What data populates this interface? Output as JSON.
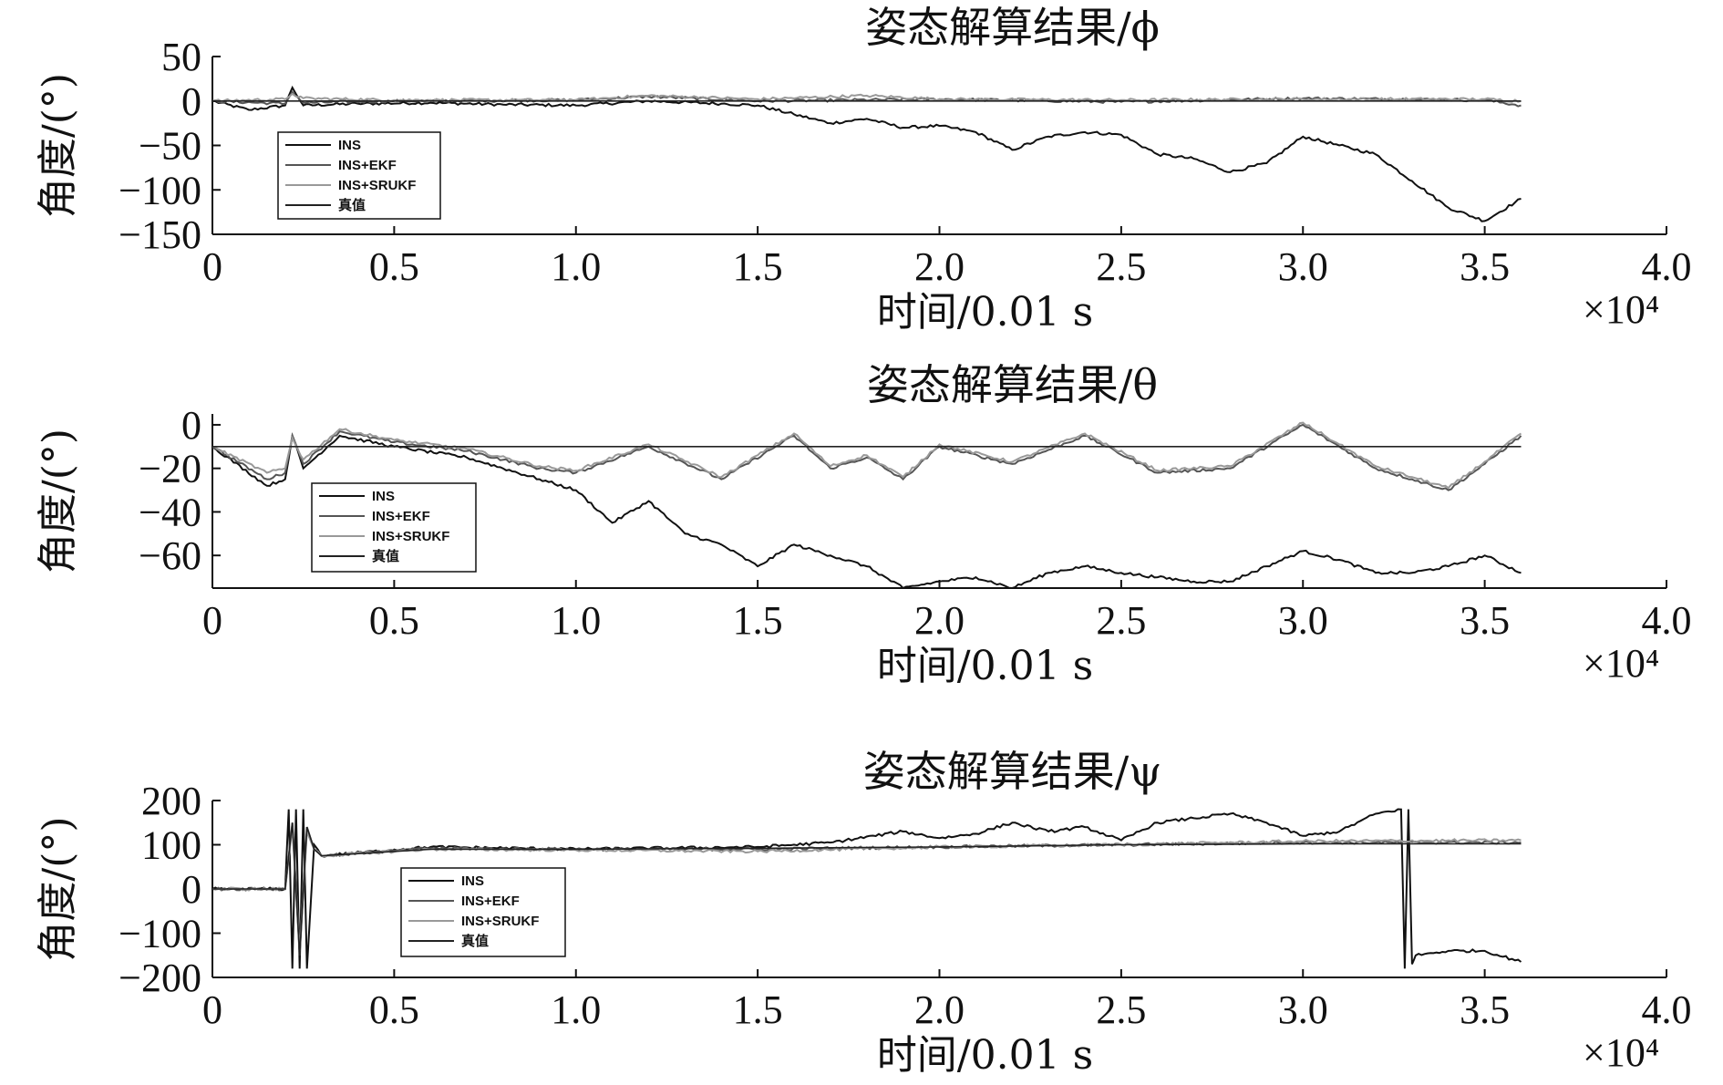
{
  "chart_data": [
    {
      "type": "line",
      "title": "姿态解算结果/ϕ",
      "xlabel": "时间/0.01 s",
      "ylabel": "角度/(°)",
      "x_exponent": "×10⁴",
      "xlim": [
        0,
        4.0
      ],
      "ylim": [
        -150,
        50
      ],
      "x_ticks": [
        "0",
        "0.5",
        "1.0",
        "1.5",
        "2.0",
        "2.5",
        "3.0",
        "3.5",
        "4.0"
      ],
      "y_ticks": [
        "50",
        "0",
        "−50",
        "−100",
        "−150"
      ],
      "legend": [
        "INS",
        "INS+EKF",
        "INS+SRUKF",
        "真值"
      ],
      "legend_position": "lower-left",
      "series": [
        {
          "name": "INS",
          "color": "#111111",
          "x": [
            0,
            0.1,
            0.2,
            0.22,
            0.25,
            0.4,
            0.6,
            0.8,
            1.0,
            1.2,
            1.4,
            1.5,
            1.6,
            1.7,
            1.8,
            1.9,
            2.0,
            2.1,
            2.2,
            2.3,
            2.4,
            2.5,
            2.6,
            2.7,
            2.8,
            2.9,
            3.0,
            3.1,
            3.2,
            3.3,
            3.4,
            3.5,
            3.6
          ],
          "y": [
            0,
            -10,
            -5,
            15,
            -5,
            -3,
            -2,
            -4,
            -5,
            0,
            -3,
            -5,
            -15,
            -25,
            -20,
            -30,
            -28,
            -35,
            -55,
            -40,
            -35,
            -38,
            -60,
            -65,
            -80,
            -70,
            -40,
            -50,
            -60,
            -90,
            -120,
            -135,
            -110
          ]
        },
        {
          "name": "INS+EKF",
          "color": "#555555",
          "x": [
            0,
            0.2,
            0.22,
            0.25,
            0.5,
            1.0,
            1.2,
            1.5,
            2.0,
            2.5,
            3.0,
            3.5,
            3.6
          ],
          "y": [
            0,
            -3,
            10,
            -2,
            0,
            1,
            5,
            0,
            2,
            -1,
            3,
            1,
            -5
          ]
        },
        {
          "name": "INS+SRUKF",
          "color": "#999999",
          "x": [
            0,
            0.2,
            0.22,
            0.25,
            0.5,
            1.0,
            1.2,
            1.5,
            1.8,
            2.0,
            2.5,
            3.0,
            3.5,
            3.6
          ],
          "y": [
            0,
            2,
            8,
            3,
            1,
            1,
            6,
            2,
            6,
            2,
            1,
            2,
            2,
            0
          ]
        },
        {
          "name": "真值",
          "color": "#222222",
          "x": [
            0,
            3.6
          ],
          "y": [
            0,
            0
          ]
        }
      ]
    },
    {
      "type": "line",
      "title": "姿态解算结果/θ",
      "xlabel": "时间/0.01 s",
      "ylabel": "角度/(°)",
      "x_exponent": "×10⁴",
      "xlim": [
        0,
        4.0
      ],
      "ylim": [
        -75,
        5
      ],
      "x_ticks": [
        "0",
        "0.5",
        "1.0",
        "1.5",
        "2.0",
        "2.5",
        "3.0",
        "3.5",
        "4.0"
      ],
      "y_ticks": [
        "0",
        "−20",
        "−40",
        "−60"
      ],
      "legend": [
        "INS",
        "INS+EKF",
        "INS+SRUKF",
        "真值"
      ],
      "legend_position": "lower-left",
      "series": [
        {
          "name": "INS",
          "color": "#111111",
          "x": [
            0,
            0.15,
            0.2,
            0.22,
            0.25,
            0.35,
            0.5,
            0.7,
            0.9,
            1.0,
            1.1,
            1.2,
            1.3,
            1.4,
            1.5,
            1.6,
            1.7,
            1.8,
            1.9,
            2.0,
            2.1,
            2.2,
            2.3,
            2.4,
            2.5,
            2.6,
            2.7,
            2.8,
            2.9,
            3.0,
            3.1,
            3.2,
            3.3,
            3.4,
            3.5,
            3.6
          ],
          "y": [
            -10,
            -28,
            -25,
            -5,
            -20,
            -5,
            -10,
            -15,
            -25,
            -30,
            -45,
            -35,
            -50,
            -55,
            -65,
            -55,
            -60,
            -65,
            -75,
            -72,
            -70,
            -75,
            -68,
            -65,
            -68,
            -70,
            -72,
            -72,
            -65,
            -58,
            -62,
            -68,
            -68,
            -65,
            -60,
            -68
          ]
        },
        {
          "name": "INS+EKF",
          "color": "#555555",
          "x": [
            0,
            0.15,
            0.2,
            0.22,
            0.25,
            0.35,
            0.5,
            0.7,
            0.9,
            1.0,
            1.2,
            1.4,
            1.6,
            1.7,
            1.8,
            1.9,
            2.0,
            2.2,
            2.4,
            2.6,
            2.8,
            3.0,
            3.1,
            3.2,
            3.3,
            3.4,
            3.5,
            3.6
          ],
          "y": [
            -10,
            -25,
            -22,
            -5,
            -18,
            -3,
            -8,
            -12,
            -20,
            -22,
            -10,
            -25,
            -5,
            -20,
            -15,
            -25,
            -10,
            -18,
            -5,
            -22,
            -20,
            0,
            -10,
            -20,
            -25,
            -30,
            -18,
            -5
          ]
        },
        {
          "name": "INS+SRUKF",
          "color": "#999999",
          "x": [
            0,
            0.15,
            0.2,
            0.22,
            0.25,
            0.35,
            0.5,
            0.7,
            0.9,
            1.0,
            1.2,
            1.4,
            1.6,
            1.7,
            1.8,
            1.9,
            2.0,
            2.2,
            2.4,
            2.6,
            2.8,
            3.0,
            3.1,
            3.2,
            3.3,
            3.4,
            3.5,
            3.6
          ],
          "y": [
            -10,
            -22,
            -20,
            -6,
            -16,
            -2,
            -7,
            -11,
            -19,
            -21,
            -9,
            -24,
            -4,
            -19,
            -14,
            -24,
            -9,
            -17,
            -4,
            -21,
            -19,
            1,
            -9,
            -19,
            -24,
            -29,
            -17,
            -4
          ]
        },
        {
          "name": "真值",
          "color": "#222222",
          "x": [
            0,
            3.6
          ],
          "y": [
            -10,
            -10
          ]
        }
      ]
    },
    {
      "type": "line",
      "title": "姿态解算结果/ψ",
      "xlabel": "时间/0.01 s",
      "ylabel": "角度/(°)",
      "x_exponent": "×10⁴",
      "xlim": [
        0,
        4.0
      ],
      "ylim": [
        -200,
        200
      ],
      "x_ticks": [
        "0",
        "0.5",
        "1.0",
        "1.5",
        "2.0",
        "2.5",
        "3.0",
        "3.5",
        "4.0"
      ],
      "y_ticks": [
        "200",
        "100",
        "0",
        "−100",
        "−200"
      ],
      "legend": [
        "INS",
        "INS+EKF",
        "INS+SRUKF",
        "真值"
      ],
      "legend_position": "lower-left",
      "series": [
        {
          "name": "INS",
          "color": "#111111",
          "x": [
            0,
            0.2,
            0.21,
            0.22,
            0.23,
            0.24,
            0.25,
            0.26,
            0.28,
            0.3,
            0.6,
            1.0,
            1.5,
            1.7,
            1.9,
            2.0,
            2.1,
            2.2,
            2.3,
            2.4,
            2.5,
            2.6,
            2.7,
            2.8,
            2.9,
            3.0,
            3.1,
            3.2,
            3.27,
            3.28,
            3.29,
            3.3,
            3.31,
            3.4,
            3.5,
            3.6
          ],
          "y": [
            0,
            0,
            180,
            -180,
            180,
            -180,
            180,
            -180,
            100,
            75,
            95,
            90,
            95,
            105,
            130,
            115,
            125,
            150,
            130,
            140,
            110,
            150,
            160,
            170,
            150,
            120,
            130,
            170,
            180,
            -180,
            180,
            -170,
            -150,
            -140,
            -140,
            -165
          ]
        },
        {
          "name": "INS+EKF",
          "color": "#555555",
          "x": [
            0,
            0.2,
            0.22,
            0.24,
            0.26,
            0.28,
            0.3,
            0.6,
            1.0,
            1.5,
            2.0,
            2.5,
            3.0,
            3.6
          ],
          "y": [
            0,
            0,
            150,
            -150,
            140,
            90,
            75,
            92,
            90,
            90,
            95,
            100,
            105,
            105
          ]
        },
        {
          "name": "INS+SRUKF",
          "color": "#999999",
          "x": [
            0,
            0.2,
            0.22,
            0.24,
            0.26,
            0.28,
            0.3,
            0.6,
            1.0,
            1.5,
            2.0,
            2.5,
            3.0,
            3.6
          ],
          "y": [
            0,
            0,
            140,
            -140,
            130,
            90,
            75,
            90,
            88,
            85,
            95,
            100,
            108,
            110
          ]
        },
        {
          "name": "真值",
          "color": "#222222",
          "x": [
            0,
            0.2,
            0.22,
            0.24,
            0.26,
            0.28,
            0.3,
            0.6,
            1.0,
            1.5,
            2.0,
            2.5,
            3.0,
            3.6
          ],
          "y": [
            0,
            0,
            150,
            -150,
            140,
            90,
            75,
            90,
            90,
            92,
            95,
            100,
            102,
            102
          ]
        }
      ]
    }
  ]
}
